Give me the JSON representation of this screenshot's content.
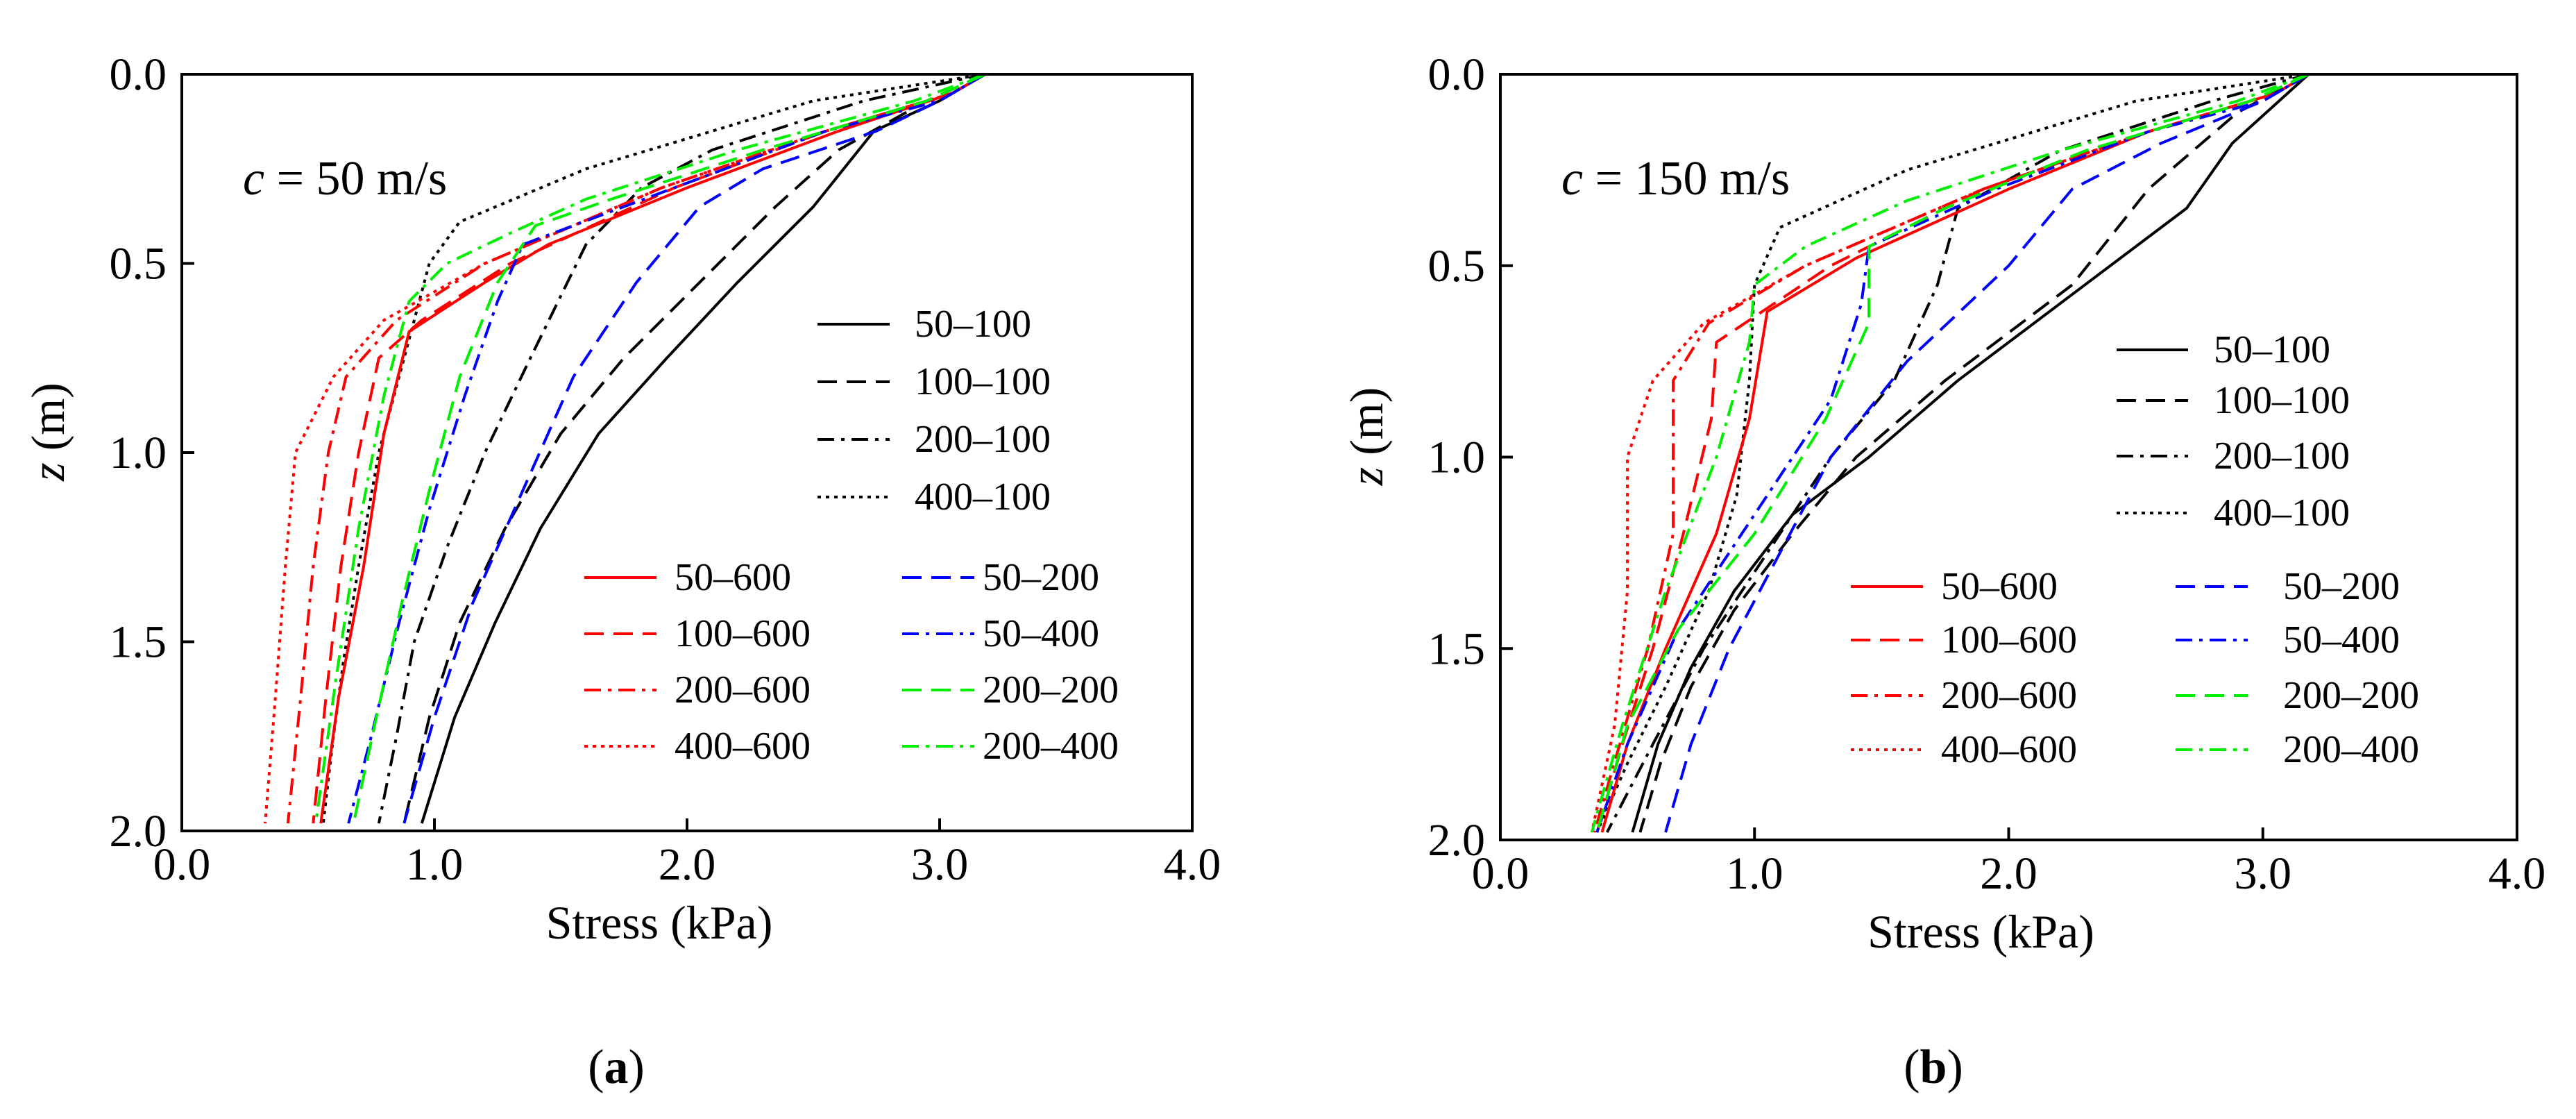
{
  "chart_data": [
    {
      "type": "line",
      "panel_label": "a",
      "annotation": {
        "symbol": "c",
        "text": " = 50 m/s"
      },
      "xlabel": "Stress (kPa)",
      "ylabel_symbol": "z",
      "ylabel_unit": " (m)",
      "xlim": [
        0,
        4
      ],
      "ylim": [
        0,
        2
      ],
      "y_inverted": true,
      "x_axis_position": "bottom",
      "grid": false,
      "xticks": [
        "0.0",
        "1.0",
        "2.0",
        "3.0",
        "4.0"
      ],
      "yticks": [
        "0.0",
        "0.5",
        "1.0",
        "1.5",
        "2.0"
      ],
      "legend_columns": [
        [
          "50–100",
          "100–100",
          "200–100",
          "400–100"
        ],
        [
          "50–600",
          "100–600",
          "200–600",
          "400–600"
        ],
        [
          "50–200",
          "50–400",
          "200–200",
          "200–400"
        ]
      ],
      "series": [
        {
          "name": "50–100",
          "color": "#000000",
          "dash": "solid",
          "x": [
            3.18,
            3.0,
            2.74,
            2.5,
            2.2,
            1.92,
            1.65,
            1.42,
            1.24,
            1.08,
            0.95
          ],
          "y": [
            0.0,
            0.07,
            0.15,
            0.35,
            0.55,
            0.75,
            0.95,
            1.2,
            1.45,
            1.7,
            1.98
          ]
        },
        {
          "name": "100–100",
          "color": "#000000",
          "dash": "dashed",
          "x": [
            3.18,
            2.95,
            2.6,
            2.35,
            2.05,
            1.75,
            1.5,
            1.28,
            1.1,
            0.98,
            0.88
          ],
          "y": [
            0.0,
            0.07,
            0.2,
            0.35,
            0.55,
            0.75,
            0.95,
            1.2,
            1.45,
            1.7,
            1.98
          ]
        },
        {
          "name": "200–100",
          "color": "#000000",
          "dash": "dashdot",
          "x": [
            3.18,
            2.7,
            2.1,
            1.82,
            1.6,
            1.38,
            1.2,
            1.05,
            0.92,
            0.85,
            0.78
          ],
          "y": [
            0.0,
            0.07,
            0.2,
            0.3,
            0.45,
            0.75,
            1.0,
            1.25,
            1.5,
            1.75,
            1.98
          ]
        },
        {
          "name": "400–100",
          "color": "#000000",
          "dash": "dotted",
          "x": [
            3.18,
            2.5,
            1.6,
            1.1,
            0.98,
            0.92,
            0.78,
            0.7,
            0.64,
            0.6,
            0.56
          ],
          "y": [
            0.0,
            0.07,
            0.25,
            0.39,
            0.5,
            0.65,
            1.0,
            1.3,
            1.55,
            1.75,
            1.98
          ]
        },
        {
          "name": "50–600",
          "color": "#ff0000",
          "dash": "solid",
          "x": [
            3.18,
            3.05,
            2.6,
            2.0,
            1.45,
            1.2,
            0.9,
            0.8,
            0.72,
            0.62,
            0.55
          ],
          "y": [
            0.0,
            0.05,
            0.15,
            0.3,
            0.45,
            0.55,
            0.68,
            0.95,
            1.3,
            1.65,
            1.98
          ]
        },
        {
          "name": "100–600",
          "color": "#ff0000",
          "dash": "dashed",
          "x": [
            3.18,
            3.05,
            2.55,
            1.95,
            1.3,
            0.95,
            0.78,
            0.7,
            0.63,
            0.57,
            0.52
          ],
          "y": [
            0.0,
            0.05,
            0.15,
            0.3,
            0.5,
            0.65,
            0.75,
            1.0,
            1.3,
            1.65,
            1.98
          ]
        },
        {
          "name": "200–600",
          "color": "#ff0000",
          "dash": "dashdot",
          "x": [
            3.18,
            3.05,
            2.55,
            1.9,
            1.2,
            0.85,
            0.65,
            0.58,
            0.52,
            0.47,
            0.42
          ],
          "y": [
            0.0,
            0.05,
            0.15,
            0.3,
            0.5,
            0.65,
            0.8,
            1.0,
            1.3,
            1.65,
            1.98
          ]
        },
        {
          "name": "400–600",
          "color": "#ff0000",
          "dash": "dotted",
          "x": [
            3.18,
            3.05,
            2.55,
            1.9,
            1.2,
            0.8,
            0.6,
            0.45,
            0.41,
            0.37,
            0.33
          ],
          "y": [
            0.0,
            0.05,
            0.15,
            0.3,
            0.5,
            0.65,
            0.8,
            1.0,
            1.3,
            1.65,
            1.98
          ]
        },
        {
          "name": "50–200",
          "color": "#0000ff",
          "dash": "dashed",
          "x": [
            3.18,
            3.0,
            2.75,
            2.3,
            2.05,
            1.8,
            1.55,
            1.35,
            1.15,
            1.0,
            0.88
          ],
          "y": [
            0.0,
            0.07,
            0.15,
            0.25,
            0.35,
            0.55,
            0.8,
            1.1,
            1.4,
            1.7,
            1.98
          ]
        },
        {
          "name": "50–400",
          "color": "#0000ff",
          "dash": "dashdot",
          "x": [
            3.18,
            3.0,
            2.55,
            1.95,
            1.35,
            1.25,
            1.12,
            0.98,
            0.86,
            0.75,
            0.66
          ],
          "y": [
            0.0,
            0.07,
            0.15,
            0.3,
            0.45,
            0.6,
            0.85,
            1.15,
            1.45,
            1.75,
            1.98
          ]
        },
        {
          "name": "200–200",
          "color": "#00ee00",
          "dash": "dashed",
          "x": [
            3.18,
            2.95,
            2.3,
            1.7,
            1.4,
            1.25,
            1.1,
            0.98,
            0.87,
            0.77,
            0.68
          ],
          "y": [
            0.0,
            0.07,
            0.2,
            0.33,
            0.4,
            0.55,
            0.8,
            1.1,
            1.4,
            1.7,
            1.98
          ]
        },
        {
          "name": "200–400",
          "color": "#00ee00",
          "dash": "dashdot",
          "x": [
            3.18,
            2.9,
            2.2,
            1.6,
            1.3,
            1.05,
            0.9,
            0.8,
            0.7,
            0.61,
            0.53
          ],
          "y": [
            0.0,
            0.07,
            0.2,
            0.33,
            0.42,
            0.5,
            0.6,
            0.85,
            1.2,
            1.6,
            1.98
          ]
        }
      ]
    },
    {
      "type": "line",
      "panel_label": "b",
      "annotation": {
        "symbol": "c",
        "text": " = 150 m/s"
      },
      "xlabel": "Stress (kPa)",
      "ylabel_symbol": "z",
      "ylabel_unit": " (m)",
      "xlim": [
        0,
        4
      ],
      "ylim": [
        0,
        2
      ],
      "y_inverted": true,
      "x_axis_position": "bottom",
      "grid": false,
      "xticks": [
        "0.0",
        "1.0",
        "2.0",
        "3.0",
        "4.0"
      ],
      "yticks": [
        "0.0",
        "0.5",
        "1.0",
        "1.5",
        "2.0"
      ],
      "legend_columns": [
        [
          "50–100",
          "100–100",
          "200–100",
          "400–100"
        ],
        [
          "50–600",
          "100–600",
          "200–600",
          "400–600"
        ],
        [
          "50–200",
          "50–400",
          "200–200",
          "200–400"
        ]
      ],
      "series": [
        {
          "name": "50–100",
          "color": "#000000",
          "dash": "solid",
          "x": [
            3.18,
            2.88,
            2.7,
            2.3,
            1.8,
            1.45,
            1.15,
            0.92,
            0.75,
            0.62,
            0.52
          ],
          "y": [
            0.0,
            0.18,
            0.35,
            0.55,
            0.8,
            1.0,
            1.15,
            1.35,
            1.55,
            1.75,
            1.98
          ]
        },
        {
          "name": "100–100",
          "color": "#000000",
          "dash": "dashed",
          "x": [
            3.18,
            2.9,
            2.55,
            2.25,
            1.75,
            1.4,
            1.15,
            0.92,
            0.75,
            0.63,
            0.55
          ],
          "y": [
            0.0,
            0.1,
            0.3,
            0.55,
            0.8,
            1.0,
            1.2,
            1.4,
            1.6,
            1.8,
            1.98
          ]
        },
        {
          "name": "200–100",
          "color": "#000000",
          "dash": "dashdot",
          "x": [
            3.18,
            2.8,
            2.2,
            1.8,
            1.72,
            1.55,
            1.3,
            1.05,
            0.8,
            0.6,
            0.42
          ],
          "y": [
            0.0,
            0.07,
            0.2,
            0.35,
            0.55,
            0.8,
            1.0,
            1.25,
            1.5,
            1.75,
            1.98
          ]
        },
        {
          "name": "400–100",
          "color": "#000000",
          "dash": "dotted",
          "x": [
            3.18,
            2.5,
            1.6,
            1.1,
            1.0,
            0.98,
            0.93,
            0.82,
            0.65,
            0.5,
            0.38
          ],
          "y": [
            0.0,
            0.07,
            0.25,
            0.4,
            0.55,
            0.8,
            1.1,
            1.35,
            1.6,
            1.8,
            1.98
          ]
        },
        {
          "name": "50–600",
          "color": "#ff0000",
          "dash": "solid",
          "x": [
            3.18,
            3.05,
            2.55,
            2.0,
            1.4,
            1.05,
            0.98,
            0.85,
            0.65,
            0.5,
            0.4
          ],
          "y": [
            0.0,
            0.05,
            0.15,
            0.3,
            0.48,
            0.62,
            0.9,
            1.2,
            1.5,
            1.75,
            1.98
          ]
        },
        {
          "name": "100–600",
          "color": "#ff0000",
          "dash": "dashed",
          "x": [
            3.18,
            3.05,
            2.55,
            1.9,
            1.3,
            0.85,
            0.83,
            0.72,
            0.6,
            0.48,
            0.38
          ],
          "y": [
            0.0,
            0.05,
            0.15,
            0.3,
            0.5,
            0.7,
            0.9,
            1.2,
            1.5,
            1.75,
            1.98
          ]
        },
        {
          "name": "200–600",
          "color": "#ff0000",
          "dash": "dashdot",
          "x": [
            3.18,
            3.05,
            2.55,
            1.9,
            1.2,
            0.82,
            0.68,
            0.68,
            0.58,
            0.47,
            0.37
          ],
          "y": [
            0.0,
            0.05,
            0.15,
            0.3,
            0.5,
            0.65,
            0.8,
            1.2,
            1.5,
            1.75,
            1.98
          ]
        },
        {
          "name": "400–600",
          "color": "#ff0000",
          "dash": "dotted",
          "x": [
            3.18,
            3.05,
            2.55,
            1.9,
            1.2,
            0.8,
            0.6,
            0.5,
            0.5,
            0.45,
            0.36
          ],
          "y": [
            0.0,
            0.05,
            0.15,
            0.3,
            0.5,
            0.65,
            0.8,
            1.0,
            1.35,
            1.7,
            1.98
          ]
        },
        {
          "name": "50–200",
          "color": "#0000ff",
          "dash": "dashed",
          "x": [
            3.18,
            3.0,
            2.6,
            2.25,
            2.0,
            1.6,
            1.3,
            1.1,
            0.9,
            0.75,
            0.65
          ],
          "y": [
            0.0,
            0.07,
            0.18,
            0.3,
            0.5,
            0.75,
            1.0,
            1.25,
            1.5,
            1.75,
            1.98
          ]
        },
        {
          "name": "50–400",
          "color": "#0000ff",
          "dash": "dashdot",
          "x": [
            3.18,
            3.0,
            2.55,
            1.95,
            1.45,
            1.42,
            1.3,
            1.0,
            0.7,
            0.5,
            0.38
          ],
          "y": [
            0.0,
            0.07,
            0.15,
            0.3,
            0.45,
            0.6,
            0.85,
            1.15,
            1.45,
            1.75,
            1.98
          ]
        },
        {
          "name": "200–200",
          "color": "#00ee00",
          "dash": "dashed",
          "x": [
            3.18,
            2.95,
            2.3,
            1.75,
            1.45,
            1.45,
            1.28,
            1.0,
            0.7,
            0.5,
            0.38
          ],
          "y": [
            0.0,
            0.07,
            0.2,
            0.35,
            0.45,
            0.65,
            0.9,
            1.2,
            1.45,
            1.7,
            1.98
          ]
        },
        {
          "name": "200–400",
          "color": "#00ee00",
          "dash": "dashdot",
          "x": [
            3.18,
            2.9,
            2.2,
            1.6,
            1.2,
            1.0,
            0.98,
            0.85,
            0.65,
            0.48,
            0.36
          ],
          "y": [
            0.0,
            0.07,
            0.2,
            0.33,
            0.45,
            0.55,
            0.7,
            1.0,
            1.35,
            1.7,
            1.98
          ]
        }
      ]
    }
  ]
}
